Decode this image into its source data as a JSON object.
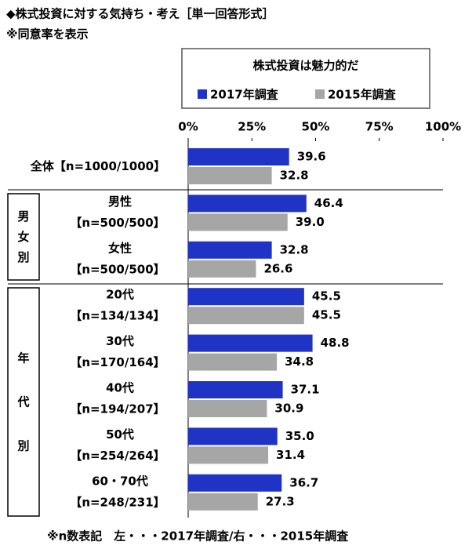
{
  "chart_data": {
    "type": "hbar",
    "title": "◆株式投資に対する気持ち・考え［単一回答形式］",
    "subtitle": "※同意率を表示",
    "legend_title": "株式投資は魅力的だ",
    "categories": [
      "全体",
      "男性",
      "女性",
      "20代",
      "30代",
      "40代",
      "50代",
      "60・70代"
    ],
    "n_labels": [
      "【n=1000/1000】",
      "【n=500/500】",
      "【n=500/500】",
      "【n=134/134】",
      "【n=170/164】",
      "【n=194/207】",
      "【n=254/264】",
      "【n=248/231】"
    ],
    "groups": [
      "男女別",
      "年代別"
    ],
    "series": [
      {
        "name": "2017年調査",
        "color": "#1f33c4",
        "values": [
          39.6,
          46.4,
          32.8,
          45.5,
          48.8,
          37.1,
          35.0,
          36.7
        ],
        "value_labels": [
          "39.6",
          "46.4",
          "32.8",
          "45.5",
          "48.8",
          "37.1",
          "35.0",
          "36.7"
        ]
      },
      {
        "name": "2015年調査",
        "color": "#a6a6a6",
        "values": [
          32.8,
          39.0,
          26.6,
          45.5,
          34.8,
          30.9,
          31.4,
          27.3
        ],
        "value_labels": [
          "32.8",
          "39.0",
          "26.6",
          "45.5",
          "34.8",
          "30.9",
          "31.4",
          "27.3"
        ]
      }
    ],
    "xlim": [
      0,
      100
    ],
    "xticks": [
      {
        "value": 0,
        "label": "0%"
      },
      {
        "value": 25,
        "label": "25%"
      },
      {
        "value": 50,
        "label": "50%"
      },
      {
        "value": 75,
        "label": "75%"
      },
      {
        "value": 100,
        "label": "100%"
      }
    ],
    "footnote": "※n数表記　左・・・2017年調査/右・・・2015年調査"
  }
}
